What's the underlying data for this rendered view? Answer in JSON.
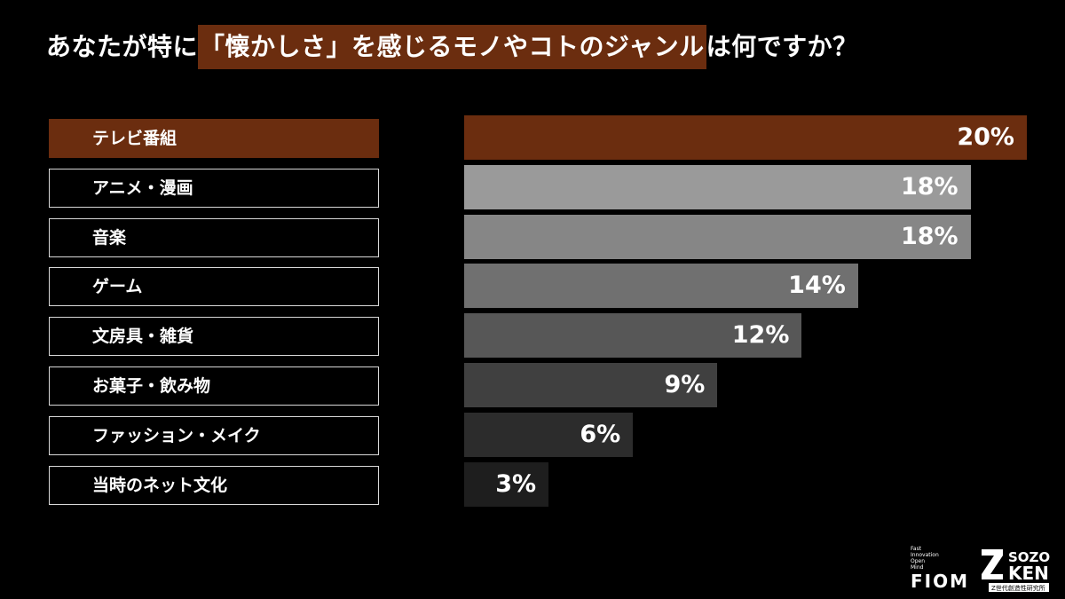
{
  "title": {
    "pre": "あなたが特に",
    "highlight": "「懐かしさ」を感じるモノやコトのジャンル",
    "post": "は何ですか？"
  },
  "chart_data": {
    "type": "bar",
    "orientation": "horizontal",
    "categories": [
      "テレビ番組",
      "アニメ・漫画",
      "音楽",
      "ゲーム",
      "文房具・雑貨",
      "お菓子・飲み物",
      "ファッション・メイク",
      "当時のネット文化"
    ],
    "values": [
      20,
      18,
      18,
      14,
      12,
      9,
      6,
      3
    ],
    "value_labels": [
      "20%",
      "18%",
      "18%",
      "14%",
      "12%",
      "9%",
      "6%",
      "3%"
    ],
    "unit": "%",
    "highlight_index": 0,
    "xlim": [
      0,
      20
    ]
  },
  "colors": {
    "highlight": "#6b2d0f",
    "bars": [
      "#6b2d0f",
      "#9a9a9a",
      "#868686",
      "#707070",
      "#575757",
      "#404040",
      "#2c2c2c",
      "#1e1e1e"
    ]
  },
  "logos": {
    "fiom_small": [
      "Fast",
      "Innovation",
      "Open",
      "Mind"
    ],
    "fiom_big": "FIOM",
    "zken_sozo": "SOZO",
    "zken_ken": "KEN",
    "zken_sub": "Z世代創造性研究所"
  }
}
